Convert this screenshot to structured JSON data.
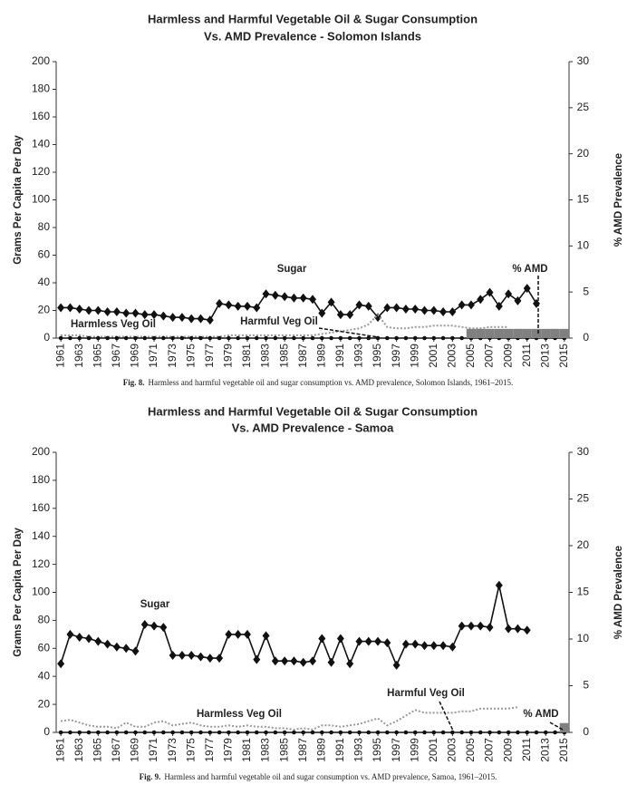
{
  "chart_data": [
    {
      "type": "line",
      "title": [
        "Harmless and Harmful Vegetable Oil & Sugar Consumption",
        "Vs. AMD Prevalence - Solomon Islands"
      ],
      "ylabel": "Grams Per Capita Per Day",
      "y2label": "% AMD Prevalence",
      "x": [
        1961,
        1962,
        1963,
        1964,
        1965,
        1966,
        1967,
        1968,
        1969,
        1970,
        1971,
        1972,
        1973,
        1974,
        1975,
        1976,
        1977,
        1978,
        1979,
        1980,
        1981,
        1982,
        1983,
        1984,
        1985,
        1986,
        1987,
        1988,
        1989,
        1990,
        1991,
        1992,
        1993,
        1994,
        1995,
        1996,
        1997,
        1998,
        1999,
        2000,
        2001,
        2002,
        2003,
        2004,
        2005,
        2006,
        2007,
        2008,
        2009,
        2010,
        2011,
        2012,
        2013,
        2014,
        2015
      ],
      "xlim": [
        1960.5,
        2015.5
      ],
      "xticks": [
        1961,
        1963,
        1965,
        1967,
        1969,
        1971,
        1973,
        1975,
        1977,
        1979,
        1981,
        1983,
        1985,
        1987,
        1989,
        1991,
        1993,
        1995,
        1997,
        1999,
        2001,
        2003,
        2005,
        2007,
        2009,
        2011,
        2013,
        2015
      ],
      "ylim": [
        0,
        200
      ],
      "yticks": [
        0,
        20,
        40,
        60,
        80,
        100,
        120,
        140,
        160,
        180,
        200
      ],
      "y2lim": [
        0,
        30
      ],
      "y2ticks": [
        0,
        5,
        10,
        15,
        20,
        25,
        30
      ],
      "series": [
        {
          "name": "Sugar",
          "style": "diamond-line",
          "color": "#111111",
          "values": [
            22,
            22,
            21,
            20,
            20,
            19,
            19,
            18,
            18,
            17,
            17,
            16,
            15,
            15,
            14,
            14,
            13,
            25,
            24,
            23,
            23,
            22,
            32,
            31,
            30,
            29,
            29,
            28,
            18,
            26,
            17,
            17,
            24,
            23,
            15,
            22,
            22,
            21,
            21,
            20,
            20,
            19,
            19,
            24,
            24,
            28,
            33,
            23,
            32,
            27,
            36,
            25,
            null,
            null,
            null
          ]
        },
        {
          "name": "Harmful Veg Oil",
          "style": "dotted",
          "color": "#999999",
          "values": [
            2,
            2,
            2,
            1,
            1,
            1,
            1,
            1,
            1,
            1,
            1,
            1,
            1,
            1,
            1,
            1,
            1,
            1,
            2,
            2,
            2,
            2,
            2,
            2,
            2,
            2,
            2,
            2,
            3,
            4,
            5,
            6,
            7,
            10,
            17,
            8,
            7,
            7,
            8,
            8,
            9,
            9,
            9,
            8,
            7,
            7,
            8,
            8,
            8,
            null,
            null,
            null,
            null,
            null,
            null
          ]
        },
        {
          "name": "Harmless Veg Oil",
          "style": "dot-line",
          "color": "#111111",
          "values": [
            0,
            0,
            0,
            0,
            0,
            0,
            0,
            0,
            0,
            0,
            0,
            0,
            0,
            0,
            0,
            0,
            0,
            0,
            0,
            0,
            0,
            0,
            0,
            0,
            0,
            0,
            0,
            0,
            0,
            0,
            0,
            0,
            0,
            0,
            0,
            0,
            0,
            0,
            0,
            0,
            0,
            0,
            0,
            0,
            0,
            0,
            0,
            0,
            0,
            0,
            0,
            0,
            0,
            0,
            0
          ]
        },
        {
          "name": "% AMD",
          "style": "bar",
          "axis": "y2",
          "color": "#808080",
          "values": [
            null,
            null,
            null,
            null,
            null,
            null,
            null,
            null,
            null,
            null,
            null,
            null,
            null,
            null,
            null,
            null,
            null,
            null,
            null,
            null,
            null,
            null,
            null,
            null,
            null,
            null,
            null,
            null,
            null,
            null,
            null,
            null,
            null,
            null,
            null,
            null,
            null,
            null,
            null,
            null,
            null,
            null,
            null,
            null,
            1,
            1,
            1,
            1,
            1,
            1,
            1,
            1,
            1,
            1,
            1
          ]
        }
      ],
      "annotations": [
        "Sugar",
        "Harmless  Veg Oil",
        "Harmful Veg Oil",
        "% AMD"
      ],
      "caption_label": "Fig. 8.",
      "caption": "Harmless and harmful vegetable oil and sugar consumption vs. AMD prevalence, Solomon Islands, 1961–2015."
    },
    {
      "type": "line",
      "title": [
        "Harmless and Harmful Vegetable Oil & Sugar Consumption",
        "Vs. AMD Prevalence - Samoa"
      ],
      "ylabel": "Grams Per Capita Per Day",
      "y2label": "% AMD Prevalence",
      "x": [
        1961,
        1962,
        1963,
        1964,
        1965,
        1966,
        1967,
        1968,
        1969,
        1970,
        1971,
        1972,
        1973,
        1974,
        1975,
        1976,
        1977,
        1978,
        1979,
        1980,
        1981,
        1982,
        1983,
        1984,
        1985,
        1986,
        1987,
        1988,
        1989,
        1990,
        1991,
        1992,
        1993,
        1994,
        1995,
        1996,
        1997,
        1998,
        1999,
        2000,
        2001,
        2002,
        2003,
        2004,
        2005,
        2006,
        2007,
        2008,
        2009,
        2010,
        2011,
        2012,
        2013,
        2014,
        2015
      ],
      "xlim": [
        1960.5,
        2015.5
      ],
      "xticks": [
        1961,
        1963,
        1965,
        1967,
        1969,
        1971,
        1973,
        1975,
        1977,
        1979,
        1981,
        1983,
        1985,
        1987,
        1989,
        1991,
        1993,
        1995,
        1997,
        1999,
        2001,
        2003,
        2005,
        2007,
        2009,
        2011,
        2013,
        2015
      ],
      "ylim": [
        0,
        200
      ],
      "yticks": [
        0,
        20,
        40,
        60,
        80,
        100,
        120,
        140,
        160,
        180,
        200
      ],
      "y2lim": [
        0,
        30
      ],
      "y2ticks": [
        0,
        5,
        10,
        15,
        20,
        25,
        30
      ],
      "series": [
        {
          "name": "Sugar",
          "style": "diamond-line",
          "color": "#111111",
          "values": [
            49,
            70,
            68,
            67,
            65,
            63,
            61,
            60,
            58,
            77,
            76,
            75,
            55,
            55,
            55,
            54,
            53,
            53,
            70,
            70,
            70,
            52,
            69,
            51,
            51,
            51,
            50,
            51,
            67,
            50,
            67,
            49,
            65,
            65,
            65,
            64,
            48,
            63,
            63,
            62,
            62,
            62,
            61,
            76,
            76,
            76,
            75,
            105,
            74,
            74,
            73,
            null,
            null,
            null,
            null
          ]
        },
        {
          "name": "Harmful Veg Oil",
          "style": "dotted",
          "color": "#999999",
          "values": [
            8,
            9,
            7,
            5,
            4,
            4,
            3,
            7,
            4,
            4,
            7,
            8,
            5,
            6,
            7,
            5,
            4,
            4,
            5,
            4,
            5,
            4,
            4,
            3,
            3,
            2,
            3,
            2,
            5,
            5,
            4,
            5,
            6,
            8,
            10,
            5,
            8,
            12,
            16,
            14,
            14,
            14,
            14,
            15,
            15,
            17,
            17,
            17,
            17,
            18,
            null,
            null,
            null,
            null,
            null
          ]
        },
        {
          "name": "Harmless Veg Oil",
          "style": "dot-line",
          "color": "#111111",
          "values": [
            0,
            0,
            0,
            0,
            0,
            0,
            0,
            0,
            0,
            0,
            0,
            0,
            0,
            0,
            0,
            0,
            0,
            0,
            0,
            0,
            0,
            0,
            0,
            0,
            0,
            0,
            0,
            0,
            0,
            0,
            0,
            0,
            0,
            0,
            0,
            0,
            0,
            0,
            0,
            0,
            0,
            0,
            0,
            0,
            0,
            0,
            0,
            0,
            0,
            0,
            0,
            0,
            0,
            0,
            0
          ]
        },
        {
          "name": "% AMD",
          "style": "bar",
          "axis": "y2",
          "color": "#808080",
          "values": [
            null,
            null,
            null,
            null,
            null,
            null,
            null,
            null,
            null,
            null,
            null,
            null,
            null,
            null,
            null,
            null,
            null,
            null,
            null,
            null,
            null,
            null,
            null,
            null,
            null,
            null,
            null,
            null,
            null,
            null,
            null,
            null,
            null,
            null,
            null,
            null,
            null,
            null,
            null,
            null,
            null,
            null,
            null,
            null,
            null,
            null,
            null,
            null,
            null,
            null,
            null,
            null,
            null,
            null,
            1
          ]
        }
      ],
      "annotations": [
        "Sugar",
        "Harmless  Veg Oil",
        "Harmful Veg Oil",
        "% AMD"
      ],
      "caption_label": "Fig. 9.",
      "caption": "Harmless and harmful vegetable oil and sugar consumption vs. AMD prevalence, Samoa, 1961–2015."
    }
  ]
}
